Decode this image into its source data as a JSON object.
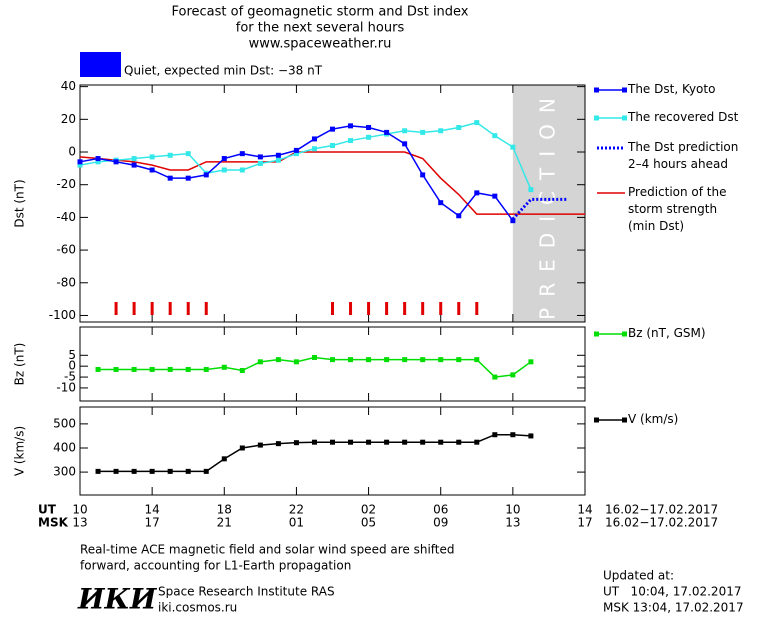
{
  "header": {
    "title": [
      "Forecast of geomagnetic storm and Dst index",
      "for the next several hours",
      "www.spaceweather.ru"
    ]
  },
  "chart_data": [
    {
      "type": "line",
      "ylabel": "Dst (nT)",
      "xlim": [
        10,
        38
      ],
      "ylim": [
        -104,
        41
      ],
      "yticks": [
        40,
        20,
        0,
        -20,
        -40,
        -60,
        -80,
        -100
      ],
      "status": {
        "label": "Quiet, expected min Dst: −38 nT",
        "color": "#0000ff"
      },
      "prediction": {
        "label": "PREDICTION",
        "x": [
          34,
          38
        ],
        "color": "#d4d4d4"
      },
      "storm_hours": [
        12,
        13,
        14,
        15,
        16,
        17,
        24,
        25,
        26,
        27,
        28,
        29,
        30,
        31,
        32
      ],
      "storm_color": "#e00000",
      "series": [
        {
          "name": "The Dst, Kyoto",
          "color": "#0000ff",
          "markers": true,
          "dotted": false,
          "x": [
            10,
            11,
            12,
            13,
            14,
            15,
            16,
            17,
            18,
            19,
            20,
            21,
            22,
            23,
            24,
            25,
            26,
            27,
            28,
            29,
            30,
            31,
            32,
            33,
            34
          ],
          "values": [
            -6,
            -4,
            -6,
            -8,
            -11,
            -16,
            -16,
            -14,
            -4,
            -1,
            -3,
            -2,
            1,
            8,
            14,
            16,
            15,
            12,
            5,
            -14,
            -31,
            -39,
            -25,
            -27,
            -42
          ]
        },
        {
          "name": "The recovered Dst",
          "color": "#33e8e8",
          "markers": true,
          "dotted": false,
          "x": [
            10,
            11,
            12,
            13,
            14,
            15,
            16,
            17,
            18,
            19,
            20,
            21,
            22,
            23,
            24,
            25,
            26,
            27,
            28,
            29,
            30,
            31,
            32,
            33,
            34,
            35
          ],
          "values": [
            -8,
            -6,
            -5,
            -4,
            -3,
            -2,
            -1,
            -13,
            -11,
            -11,
            -7,
            -5,
            -1,
            2,
            4,
            7,
            9,
            11,
            13,
            12,
            13,
            15,
            18,
            10,
            3,
            -23
          ]
        },
        {
          "name": "The Dst prediction\n2–4 hours ahead",
          "color": "#0000ff",
          "markers": false,
          "dotted": true,
          "x": [
            34,
            35,
            37
          ],
          "values": [
            -41,
            -29,
            -29
          ]
        },
        {
          "name": "Prediction of the\nstorm strength\n(min Dst)",
          "color": "#e00000",
          "markers": false,
          "dotted": false,
          "x": [
            10,
            11,
            12,
            13,
            14,
            15,
            16,
            17,
            18,
            19,
            20,
            21,
            22,
            23,
            24,
            25,
            26,
            27,
            28,
            29,
            30,
            31,
            32,
            33,
            34,
            35,
            36,
            37,
            38
          ],
          "values": [
            -3,
            -4,
            -5,
            -6,
            -8,
            -11,
            -11,
            -6,
            -6,
            -6,
            -6,
            -6,
            0,
            0,
            0,
            0,
            0,
            0,
            0,
            -4,
            -16,
            -26,
            -38,
            -38,
            -38,
            -38,
            -38,
            -38,
            -38
          ]
        }
      ]
    },
    {
      "type": "line",
      "ylabel": "Bz (nT)",
      "xlim": [
        10,
        38
      ],
      "ylim": [
        -16,
        18
      ],
      "yticks": [
        5,
        0,
        -5,
        -10
      ],
      "series": [
        {
          "name": "Bz (nT, GSM)",
          "color": "#00dd00",
          "markers": true,
          "dotted": false,
          "x": [
            11,
            12,
            13,
            14,
            15,
            16,
            17,
            18,
            19,
            20,
            21,
            22,
            23,
            24,
            25,
            26,
            27,
            28,
            29,
            30,
            31,
            32,
            33,
            34,
            35
          ],
          "values": [
            -1.5,
            -1.5,
            -1.5,
            -1.5,
            -1.5,
            -1.5,
            -1.5,
            -0.5,
            -2,
            2,
            3,
            2,
            4,
            3,
            3,
            3,
            3,
            3,
            3,
            3,
            3,
            3,
            -5,
            -4,
            2
          ]
        }
      ]
    },
    {
      "type": "line",
      "ylabel": "V (km/s)",
      "xlim": [
        10,
        38
      ],
      "ylim": [
        205,
        570
      ],
      "yticks": [
        500,
        400,
        300
      ],
      "xlabel": "UT",
      "xdate": "16.02−17.02.2017",
      "xticks": [
        10,
        14,
        18,
        22,
        {
          "value": 26,
          "label": "02"
        },
        {
          "value": 30,
          "label": "06"
        },
        {
          "value": 34,
          "label": "10"
        },
        {
          "value": 38,
          "label": "14"
        }
      ],
      "x2label": "MSK",
      "x2date": "16.02−17.02.2017",
      "x2ticks": [
        {
          "value": 10,
          "label": "13"
        },
        {
          "value": 14,
          "label": "17"
        },
        {
          "value": 18,
          "label": "21"
        },
        {
          "value": 22,
          "label": "01"
        },
        {
          "value": 26,
          "label": "05"
        },
        {
          "value": 30,
          "label": "09"
        },
        {
          "value": 34,
          "label": "13"
        },
        {
          "value": 38,
          "label": "17"
        }
      ],
      "series": [
        {
          "name": "V (km/s)",
          "color": "#000000",
          "markers": true,
          "dotted": false,
          "x": [
            11,
            12,
            13,
            14,
            15,
            16,
            17,
            18,
            19,
            20,
            21,
            22,
            23,
            24,
            25,
            26,
            27,
            28,
            29,
            30,
            31,
            32,
            33,
            34,
            35
          ],
          "values": [
            303,
            303,
            303,
            303,
            303,
            303,
            303,
            355,
            400,
            412,
            418,
            422,
            424,
            424,
            424,
            424,
            424,
            424,
            424,
            424,
            424,
            424,
            455,
            455,
            450
          ]
        }
      ]
    }
  ],
  "footer": {
    "note": [
      "Real-time ACE magnetic field and solar wind speed are shifted",
      "forward, accounting for L1-Earth propagation"
    ],
    "logo": "ИКИ",
    "institute": [
      "Space Research Institute RAS",
      "iki.cosmos.ru"
    ],
    "updated": [
      "Updated at:",
      "UT   10:04, 17.02.2017",
      "MSK 13:04, 17.02.2017"
    ]
  }
}
